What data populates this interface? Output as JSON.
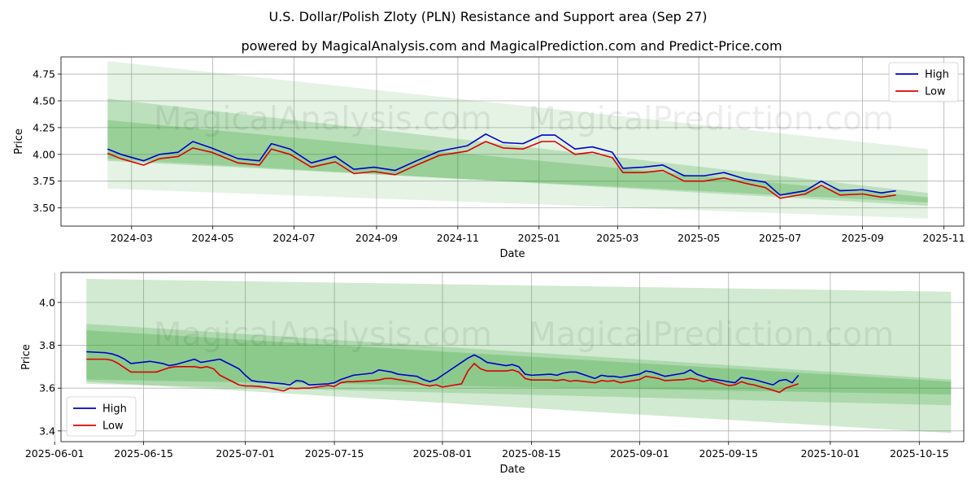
{
  "figure": {
    "title": "U.S. Dollar/Polish Zloty (PLN) Resistance and Support area (Sep 27)",
    "subtitle": "powered by MagicalAnalysis.com and MagicalPrediction.com and Predict-Price.com",
    "watermarks": [
      "MagicalAnalysis.com",
      "MagicalPrediction.com"
    ]
  },
  "colors": {
    "high": "#0000cc",
    "low": "#dd0000",
    "band": "#2ca02c",
    "grid": "#b0b0b0"
  },
  "chart_data": [
    {
      "type": "line",
      "xlabel": "Date",
      "ylabel": "Price",
      "legend": "top-right",
      "grid": true,
      "xlim": [
        "2024-01-08",
        "2025-11-16"
      ],
      "ylim": [
        3.33,
        4.91
      ],
      "x_ticks": [
        "2024-03",
        "2024-05",
        "2024-07",
        "2024-09",
        "2024-11",
        "2025-01",
        "2025-03",
        "2025-05",
        "2025-07",
        "2025-09",
        "2025-11"
      ],
      "y_ticks": [
        "3.50",
        "3.75",
        "4.00",
        "4.25",
        "4.50",
        "4.75"
      ],
      "series": [
        {
          "name": "High",
          "key": "high",
          "x": [
            "2024-02-12",
            "2024-02-22",
            "2024-03-10",
            "2024-03-22",
            "2024-04-05",
            "2024-04-16",
            "2024-04-30",
            "2024-05-20",
            "2024-06-05",
            "2024-06-14",
            "2024-06-28",
            "2024-07-14",
            "2024-08-01",
            "2024-08-15",
            "2024-08-30",
            "2024-09-15",
            "2024-10-01",
            "2024-10-18",
            "2024-11-08",
            "2024-11-22",
            "2024-12-05",
            "2024-12-20",
            "2025-01-03",
            "2025-01-13",
            "2025-01-28",
            "2025-02-10",
            "2025-02-25",
            "2025-03-05",
            "2025-03-20",
            "2025-04-04",
            "2025-04-20",
            "2025-05-05",
            "2025-05-20",
            "2025-06-05",
            "2025-06-20",
            "2025-07-01",
            "2025-07-20",
            "2025-08-01",
            "2025-08-15",
            "2025-09-01",
            "2025-09-15",
            "2025-09-26"
          ],
          "values": [
            4.05,
            4.0,
            3.94,
            4.0,
            4.02,
            4.12,
            4.06,
            3.96,
            3.94,
            4.1,
            4.05,
            3.92,
            3.98,
            3.86,
            3.88,
            3.85,
            3.94,
            4.03,
            4.08,
            4.19,
            4.11,
            4.1,
            4.18,
            4.18,
            4.05,
            4.07,
            4.02,
            3.87,
            3.88,
            3.9,
            3.8,
            3.8,
            3.83,
            3.77,
            3.74,
            3.62,
            3.66,
            3.75,
            3.66,
            3.67,
            3.64,
            3.66
          ]
        },
        {
          "name": "Low",
          "key": "low",
          "x": [
            "2024-02-12",
            "2024-02-22",
            "2024-03-10",
            "2024-03-22",
            "2024-04-05",
            "2024-04-16",
            "2024-04-30",
            "2024-05-20",
            "2024-06-05",
            "2024-06-14",
            "2024-06-28",
            "2024-07-14",
            "2024-08-01",
            "2024-08-15",
            "2024-08-30",
            "2024-09-15",
            "2024-10-01",
            "2024-10-18",
            "2024-11-08",
            "2024-11-22",
            "2024-12-05",
            "2024-12-20",
            "2025-01-03",
            "2025-01-13",
            "2025-01-28",
            "2025-02-10",
            "2025-02-25",
            "2025-03-05",
            "2025-03-20",
            "2025-04-04",
            "2025-04-20",
            "2025-05-05",
            "2025-05-20",
            "2025-06-05",
            "2025-06-20",
            "2025-07-01",
            "2025-07-20",
            "2025-08-01",
            "2025-08-15",
            "2025-09-01",
            "2025-09-15",
            "2025-09-26"
          ],
          "values": [
            4.01,
            3.96,
            3.9,
            3.96,
            3.98,
            4.06,
            4.02,
            3.92,
            3.9,
            4.05,
            4.0,
            3.88,
            3.93,
            3.82,
            3.84,
            3.81,
            3.9,
            3.99,
            4.03,
            4.12,
            4.06,
            4.05,
            4.12,
            4.12,
            4.0,
            4.02,
            3.97,
            3.83,
            3.83,
            3.85,
            3.75,
            3.75,
            3.78,
            3.73,
            3.69,
            3.59,
            3.63,
            3.71,
            3.62,
            3.63,
            3.6,
            3.62
          ]
        }
      ],
      "bands": [
        {
          "x": [
            "2024-02-12",
            "2025-10-20"
          ],
          "upper": [
            4.87,
            4.05
          ],
          "lower": [
            3.68,
            3.4
          ],
          "opacity": 0.13
        },
        {
          "x": [
            "2024-02-12",
            "2025-10-20"
          ],
          "upper": [
            4.52,
            3.64
          ],
          "lower": [
            3.96,
            3.52
          ],
          "opacity": 0.22
        },
        {
          "x": [
            "2024-02-12",
            "2025-10-20"
          ],
          "upper": [
            4.32,
            3.6
          ],
          "lower": [
            3.94,
            3.55
          ],
          "opacity": 0.25
        }
      ]
    },
    {
      "type": "line",
      "xlabel": "Date",
      "ylabel": "Price",
      "legend": "bottom-left",
      "grid": true,
      "xlim": [
        "2025-06-02",
        "2025-10-22"
      ],
      "ylim": [
        3.35,
        4.14
      ],
      "x_ticks": [
        "2025-06-01",
        "2025-06-15",
        "2025-07-01",
        "2025-07-15",
        "2025-08-01",
        "2025-08-15",
        "2025-09-01",
        "2025-09-15",
        "2025-10-01",
        "2025-10-15"
      ],
      "y_ticks": [
        "3.4",
        "3.6",
        "3.8",
        "4.0"
      ],
      "series": [
        {
          "name": "High",
          "key": "high",
          "x": [
            "2025-06-06",
            "2025-06-09",
            "2025-06-10",
            "2025-06-11",
            "2025-06-12",
            "2025-06-13",
            "2025-06-16",
            "2025-06-17",
            "2025-06-18",
            "2025-06-19",
            "2025-06-20",
            "2025-06-23",
            "2025-06-24",
            "2025-06-25",
            "2025-06-26",
            "2025-06-27",
            "2025-06-30",
            "2025-07-01",
            "2025-07-02",
            "2025-07-03",
            "2025-07-04",
            "2025-07-07",
            "2025-07-08",
            "2025-07-09",
            "2025-07-10",
            "2025-07-11",
            "2025-07-14",
            "2025-07-15",
            "2025-07-16",
            "2025-07-17",
            "2025-07-18",
            "2025-07-21",
            "2025-07-22",
            "2025-07-23",
            "2025-07-24",
            "2025-07-25",
            "2025-07-28",
            "2025-07-29",
            "2025-07-30",
            "2025-07-31",
            "2025-08-01",
            "2025-08-04",
            "2025-08-05",
            "2025-08-06",
            "2025-08-07",
            "2025-08-08",
            "2025-08-11",
            "2025-08-12",
            "2025-08-13",
            "2025-08-14",
            "2025-08-15",
            "2025-08-18",
            "2025-08-19",
            "2025-08-20",
            "2025-08-21",
            "2025-08-22",
            "2025-08-25",
            "2025-08-26",
            "2025-08-27",
            "2025-08-28",
            "2025-08-29",
            "2025-09-01",
            "2025-09-02",
            "2025-09-03",
            "2025-09-04",
            "2025-09-05",
            "2025-09-08",
            "2025-09-09",
            "2025-09-10",
            "2025-09-11",
            "2025-09-12",
            "2025-09-15",
            "2025-09-16",
            "2025-09-17",
            "2025-09-18",
            "2025-09-19",
            "2025-09-22",
            "2025-09-23",
            "2025-09-24",
            "2025-09-25",
            "2025-09-26"
          ],
          "values": [
            3.77,
            3.765,
            3.76,
            3.75,
            3.735,
            3.715,
            3.725,
            3.72,
            3.715,
            3.705,
            3.71,
            3.735,
            3.72,
            3.725,
            3.73,
            3.735,
            3.69,
            3.66,
            3.635,
            3.63,
            3.628,
            3.62,
            3.615,
            3.635,
            3.632,
            3.615,
            3.62,
            3.625,
            3.64,
            3.65,
            3.66,
            3.67,
            3.685,
            3.68,
            3.675,
            3.665,
            3.655,
            3.64,
            3.63,
            3.64,
            3.66,
            3.72,
            3.74,
            3.755,
            3.74,
            3.72,
            3.705,
            3.71,
            3.7,
            3.665,
            3.66,
            3.665,
            3.66,
            3.67,
            3.675,
            3.675,
            3.645,
            3.66,
            3.655,
            3.655,
            3.65,
            3.665,
            3.68,
            3.675,
            3.665,
            3.655,
            3.67,
            3.685,
            3.665,
            3.655,
            3.645,
            3.63,
            3.625,
            3.65,
            3.645,
            3.64,
            3.615,
            3.635,
            3.64,
            3.625,
            3.66
          ]
        },
        {
          "name": "Low",
          "key": "low",
          "x": [
            "2025-06-06",
            "2025-06-09",
            "2025-06-10",
            "2025-06-11",
            "2025-06-12",
            "2025-06-13",
            "2025-06-16",
            "2025-06-17",
            "2025-06-18",
            "2025-06-19",
            "2025-06-20",
            "2025-06-23",
            "2025-06-24",
            "2025-06-25",
            "2025-06-26",
            "2025-06-27",
            "2025-06-30",
            "2025-07-01",
            "2025-07-02",
            "2025-07-03",
            "2025-07-04",
            "2025-07-07",
            "2025-07-08",
            "2025-07-09",
            "2025-07-10",
            "2025-07-11",
            "2025-07-14",
            "2025-07-15",
            "2025-07-16",
            "2025-07-17",
            "2025-07-18",
            "2025-07-21",
            "2025-07-22",
            "2025-07-23",
            "2025-07-24",
            "2025-07-25",
            "2025-07-28",
            "2025-07-29",
            "2025-07-30",
            "2025-07-31",
            "2025-08-01",
            "2025-08-04",
            "2025-08-05",
            "2025-08-06",
            "2025-08-07",
            "2025-08-08",
            "2025-08-11",
            "2025-08-12",
            "2025-08-13",
            "2025-08-14",
            "2025-08-15",
            "2025-08-18",
            "2025-08-19",
            "2025-08-20",
            "2025-08-21",
            "2025-08-22",
            "2025-08-25",
            "2025-08-26",
            "2025-08-27",
            "2025-08-28",
            "2025-08-29",
            "2025-09-01",
            "2025-09-02",
            "2025-09-03",
            "2025-09-04",
            "2025-09-05",
            "2025-09-08",
            "2025-09-09",
            "2025-09-10",
            "2025-09-11",
            "2025-09-12",
            "2025-09-15",
            "2025-09-16",
            "2025-09-17",
            "2025-09-18",
            "2025-09-19",
            "2025-09-22",
            "2025-09-23",
            "2025-09-24",
            "2025-09-25",
            "2025-09-26"
          ],
          "values": [
            3.735,
            3.735,
            3.73,
            3.715,
            3.695,
            3.675,
            3.675,
            3.675,
            3.685,
            3.695,
            3.7,
            3.7,
            3.695,
            3.7,
            3.69,
            3.66,
            3.615,
            3.61,
            3.61,
            3.608,
            3.605,
            3.587,
            3.6,
            3.598,
            3.6,
            3.6,
            3.612,
            3.608,
            3.625,
            3.63,
            3.63,
            3.635,
            3.638,
            3.645,
            3.645,
            3.64,
            3.625,
            3.615,
            3.61,
            3.615,
            3.605,
            3.62,
            3.68,
            3.715,
            3.69,
            3.68,
            3.68,
            3.685,
            3.675,
            3.645,
            3.638,
            3.638,
            3.635,
            3.64,
            3.632,
            3.635,
            3.625,
            3.635,
            3.632,
            3.635,
            3.625,
            3.64,
            3.655,
            3.65,
            3.645,
            3.635,
            3.64,
            3.645,
            3.64,
            3.63,
            3.638,
            3.612,
            3.615,
            3.63,
            3.62,
            3.615,
            3.59,
            3.58,
            3.6,
            3.61,
            3.62
          ]
        }
      ],
      "bands": [
        {
          "x": [
            "2025-06-06",
            "2025-10-20"
          ],
          "upper": [
            4.11,
            4.05
          ],
          "lower": [
            3.63,
            3.39
          ],
          "opacity": 0.22
        },
        {
          "x": [
            "2025-06-06",
            "2025-10-20"
          ],
          "upper": [
            3.9,
            3.64
          ],
          "lower": [
            3.62,
            3.52
          ],
          "opacity": 0.22
        },
        {
          "x": [
            "2025-06-06",
            "2025-10-20"
          ],
          "upper": [
            3.87,
            3.63
          ],
          "lower": [
            3.64,
            3.57
          ],
          "opacity": 0.25
        }
      ]
    }
  ]
}
